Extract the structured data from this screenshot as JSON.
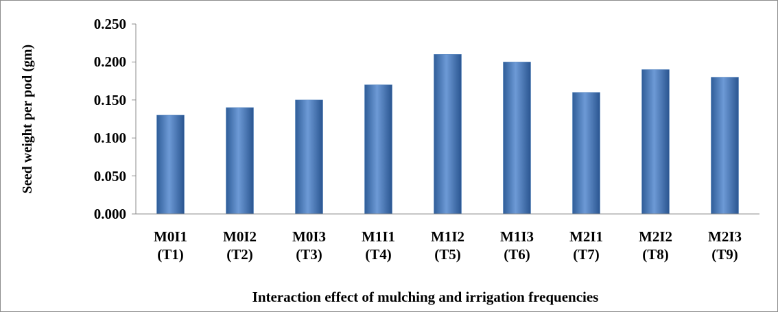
{
  "chart_data": {
    "type": "bar",
    "x_label": "Interaction effect of mulching and irrigation frequencies",
    "y_label": "Seed weight per pod (gm)",
    "categories": [
      "M0I1 (T1)",
      "M0I2 (T2)",
      "M0I3 (T3)",
      "M1I1 (T4)",
      "M1I2 (T5)",
      "M1I3 (T6)",
      "M2I1 (T7)",
      "M2I2 (T8)",
      "M2I3 (T9)"
    ],
    "values": [
      0.13,
      0.14,
      0.15,
      0.17,
      0.21,
      0.2,
      0.16,
      0.19,
      0.18
    ],
    "color": "#4f81bd",
    "ylim": [
      0,
      0.25
    ],
    "yticks": [
      {
        "value": 0,
        "label": "0.000"
      },
      {
        "value": 0.05,
        "label": "0.050"
      },
      {
        "value": 0.1,
        "label": "0.100"
      },
      {
        "value": 0.15,
        "label": "0.150"
      },
      {
        "value": 0.2,
        "label": "0.200"
      },
      {
        "value": 0.25,
        "label": "0.250"
      }
    ],
    "grid": false
  }
}
